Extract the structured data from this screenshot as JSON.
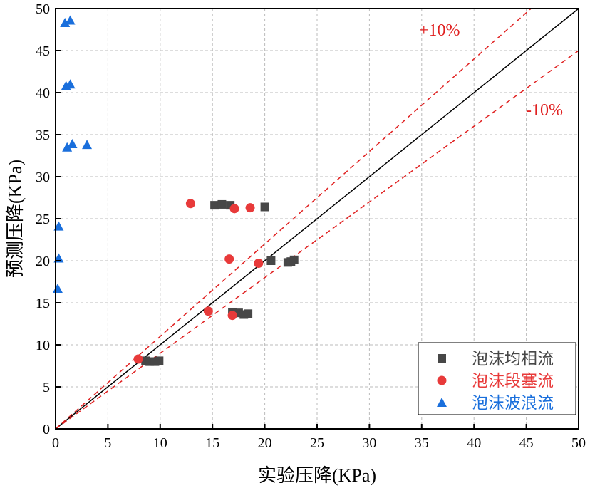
{
  "chart_data": {
    "type": "scatter",
    "xlabel": "实验压降(KPa)",
    "ylabel": "预测压降(KPa)",
    "xlim": [
      0,
      50
    ],
    "ylim": [
      0,
      50
    ],
    "xticks": [
      0,
      5,
      10,
      15,
      20,
      25,
      30,
      35,
      40,
      45,
      50
    ],
    "yticks": [
      0,
      5,
      10,
      15,
      20,
      25,
      30,
      35,
      40,
      45,
      50
    ],
    "grid": true,
    "legend_position": "bottom-right",
    "annotations": [
      {
        "text": "+10%",
        "color": "#e02020"
      },
      {
        "text": "-10%",
        "color": "#e02020"
      }
    ],
    "reference_lines": [
      {
        "slope": 1,
        "color": "#000000",
        "style": "solid"
      },
      {
        "slope": 1.1,
        "color": "#e02020",
        "style": "dashed"
      },
      {
        "slope": 0.9,
        "color": "#e02020",
        "style": "dashed"
      }
    ],
    "series": [
      {
        "name": "泡沫均相流",
        "marker": "square",
        "color": "#474747",
        "points": [
          [
            15.2,
            26.6
          ],
          [
            15.9,
            26.7
          ],
          [
            16.7,
            26.6
          ],
          [
            20.0,
            26.4
          ],
          [
            20.6,
            20.0
          ],
          [
            22.2,
            19.8
          ],
          [
            22.5,
            19.9
          ],
          [
            22.8,
            20.1
          ],
          [
            16.9,
            13.9
          ],
          [
            17.5,
            13.8
          ],
          [
            18.0,
            13.6
          ],
          [
            18.4,
            13.7
          ],
          [
            8.6,
            8.1
          ],
          [
            9.0,
            8.0
          ],
          [
            9.5,
            8.0
          ],
          [
            9.9,
            8.1
          ]
        ]
      },
      {
        "name": "泡沫段塞流",
        "marker": "circle",
        "color": "#e83a3a",
        "points": [
          [
            12.9,
            26.8
          ],
          [
            17.1,
            26.2
          ],
          [
            18.6,
            26.3
          ],
          [
            16.6,
            20.2
          ],
          [
            19.4,
            19.7
          ],
          [
            14.6,
            14.0
          ],
          [
            16.9,
            13.5
          ],
          [
            7.9,
            8.3
          ]
        ]
      },
      {
        "name": "泡沫波浪流",
        "marker": "triangle",
        "color": "#1a6fdc",
        "points": [
          [
            0.9,
            48.3
          ],
          [
            1.4,
            48.6
          ],
          [
            1.0,
            40.8
          ],
          [
            1.4,
            41.0
          ],
          [
            1.1,
            33.5
          ],
          [
            1.6,
            33.9
          ],
          [
            3.0,
            33.8
          ],
          [
            0.3,
            24.1
          ],
          [
            0.3,
            20.3
          ],
          [
            0.2,
            16.7
          ]
        ]
      }
    ]
  }
}
